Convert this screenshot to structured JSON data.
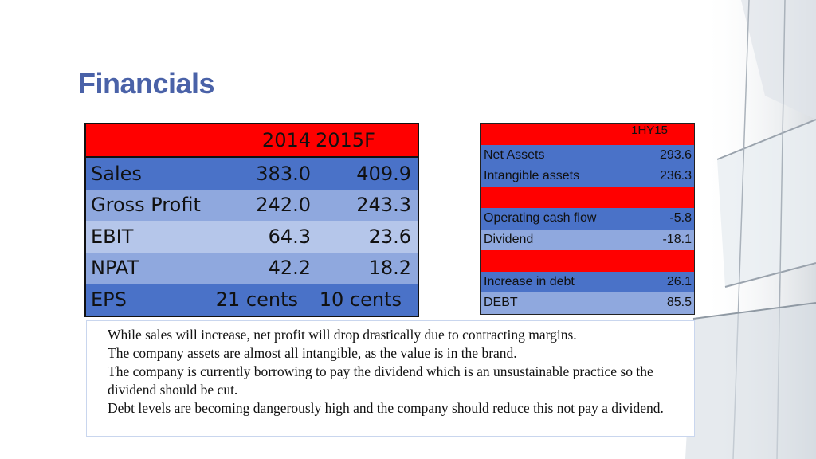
{
  "title": "Financials",
  "left_table": {
    "header": [
      "",
      "2014",
      "2015F"
    ],
    "rows": [
      {
        "label": "Sales",
        "v2014": "383.0",
        "v2015": "409.9"
      },
      {
        "label": "Gross Profit",
        "v2014": "242.0",
        "v2015": "243.3"
      },
      {
        "label": "EBIT",
        "v2014": "64.3",
        "v2015": "23.6"
      },
      {
        "label": "NPAT",
        "v2014": "42.2",
        "v2015": "18.2"
      },
      {
        "label": "EPS",
        "v2014": "21 cents",
        "v2015": "10 cents"
      }
    ]
  },
  "right_table": {
    "header": "1HY15",
    "rows": [
      {
        "label": "Net Assets",
        "value": "293.6"
      },
      {
        "label": "Intangible assets",
        "value": "236.3"
      },
      {
        "label": "",
        "value": ""
      },
      {
        "label": "Operating cash flow",
        "value": "-5.8"
      },
      {
        "label": "Dividend",
        "value": "-18.1"
      },
      {
        "label": "",
        "value": ""
      },
      {
        "label": "Increase in debt",
        "value": "26.1"
      },
      {
        "label": "DEBT",
        "value": "85.5"
      }
    ]
  },
  "notes": [
    "While sales will increase, net profit will drop drastically due to contracting margins.",
    "The company assets are almost all intangible, as the value is in the brand.",
    "The company is currently borrowing to pay the dividend which is an unsustainable practice so the dividend should be cut.",
    "Debt levels are becoming dangerously high and the company should reduce this not pay a dividend."
  ],
  "colors": {
    "title": "#4a62a8",
    "header_red": "#ff0000",
    "row_dark_blue": "#4a72c8",
    "row_light_blue": "#8fa8de"
  }
}
